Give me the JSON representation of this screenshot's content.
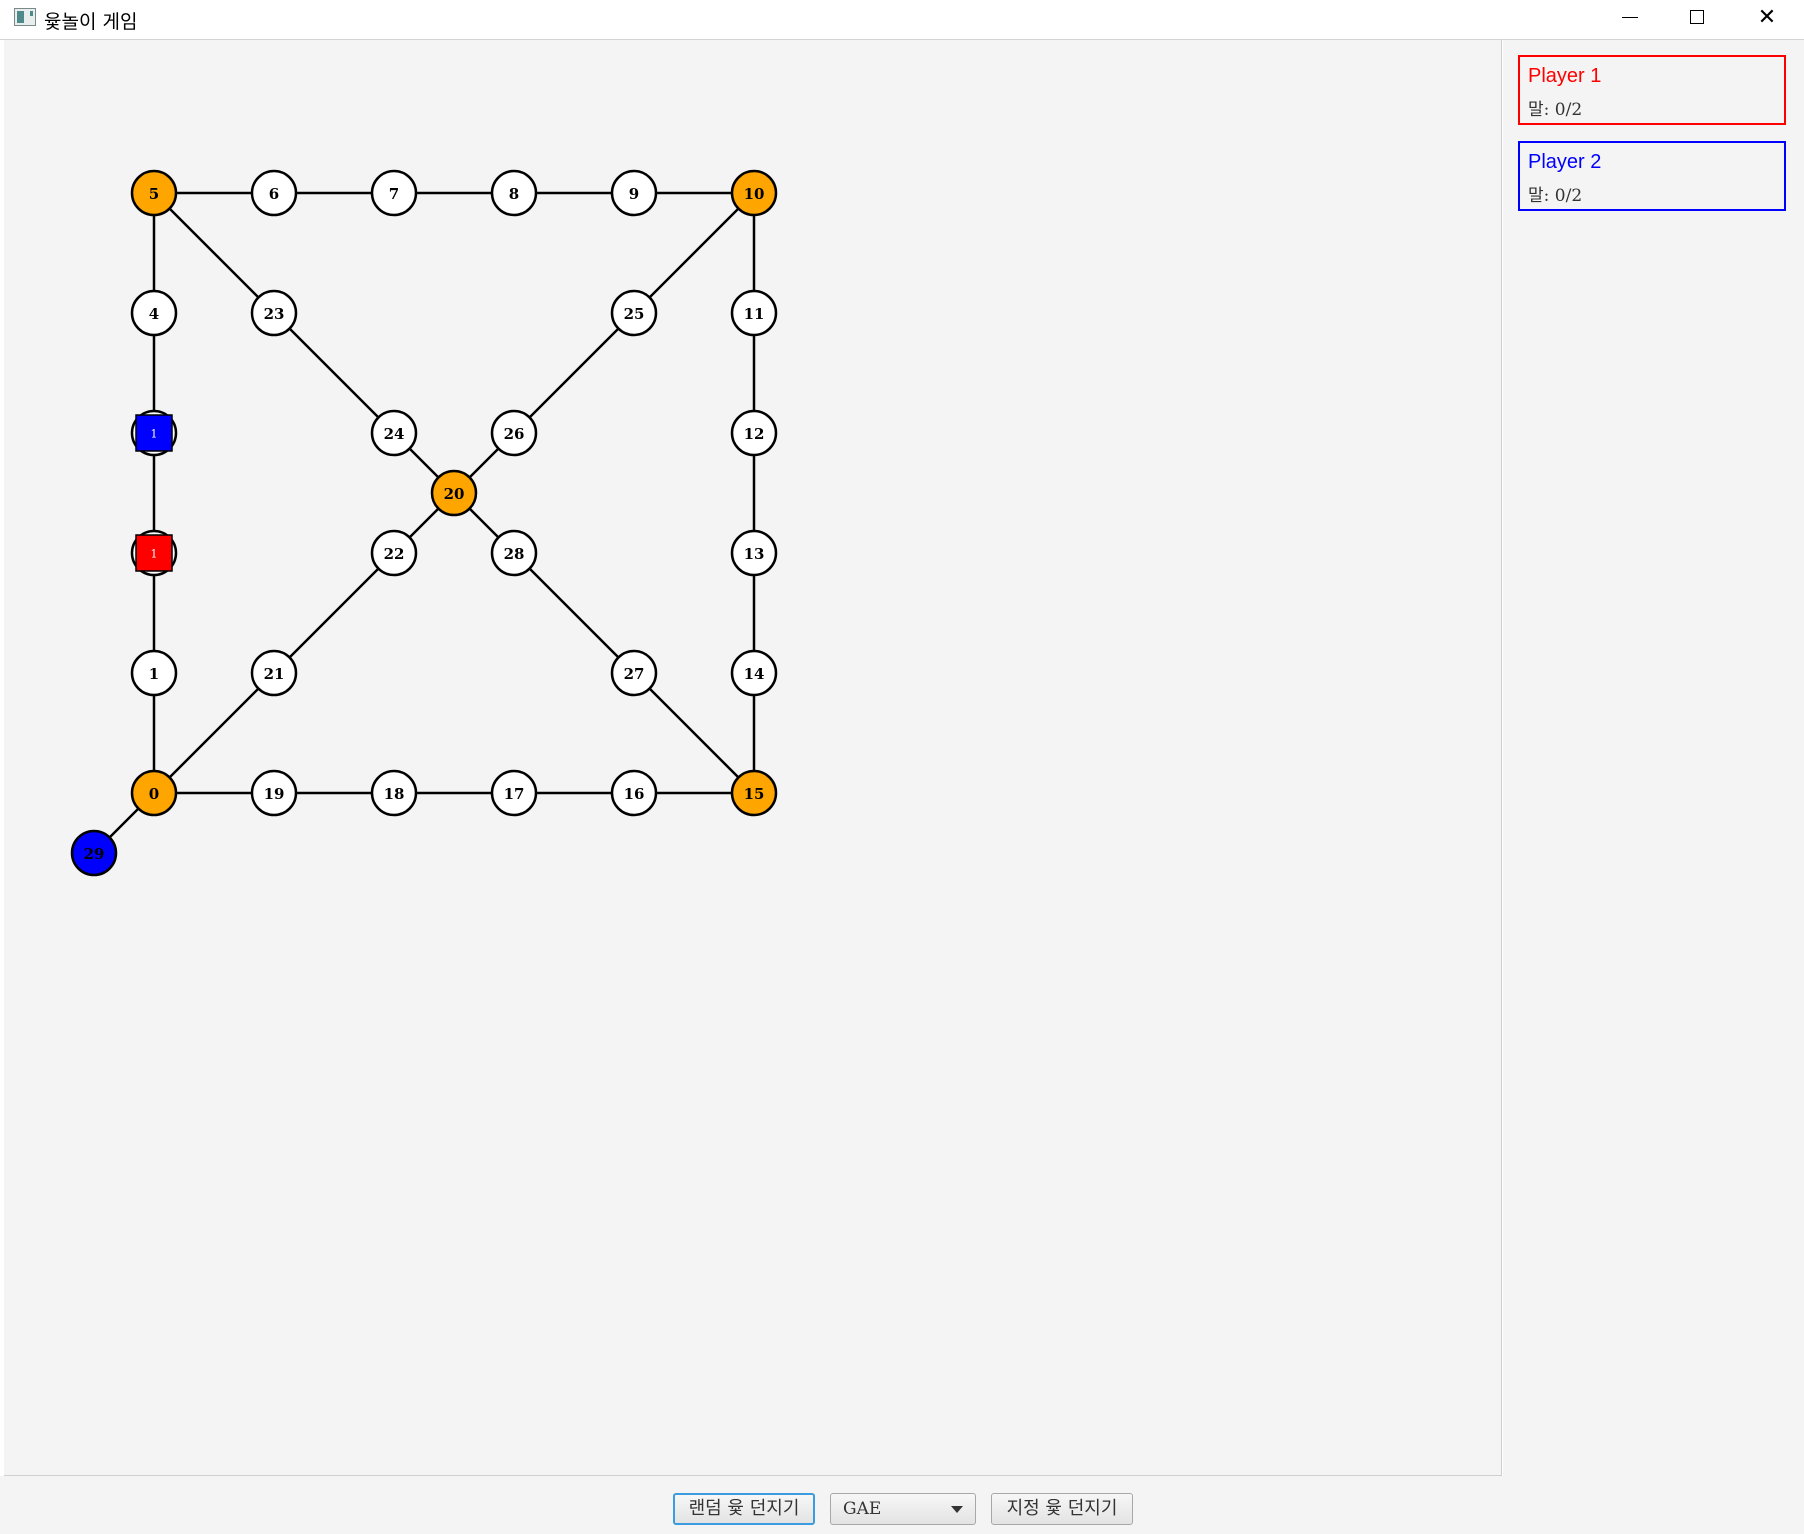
{
  "window": {
    "title": "윷놀이 게임"
  },
  "players": [
    {
      "name": "Player 1",
      "pieces_label": "말: 0/2",
      "color": "#ff0000"
    },
    {
      "name": "Player 2",
      "pieces_label": "말: 0/2",
      "color": "#0000ff"
    }
  ],
  "controls": {
    "random_throw_label": "랜덤 윷 던지기",
    "yut_selected": "GAE",
    "custom_throw_label": "지정 윷 던지기"
  },
  "board": {
    "corner_color": "#ffa500",
    "node_color": "#ffffff",
    "start_node_color": "#0000ff",
    "nodes": [
      {
        "id": "0",
        "corner": true
      },
      {
        "id": "1"
      },
      {
        "id": "2"
      },
      {
        "id": "3"
      },
      {
        "id": "4"
      },
      {
        "id": "5",
        "corner": true
      },
      {
        "id": "6"
      },
      {
        "id": "7"
      },
      {
        "id": "8"
      },
      {
        "id": "9"
      },
      {
        "id": "10",
        "corner": true
      },
      {
        "id": "11"
      },
      {
        "id": "12"
      },
      {
        "id": "13"
      },
      {
        "id": "14"
      },
      {
        "id": "15",
        "corner": true
      },
      {
        "id": "16"
      },
      {
        "id": "17"
      },
      {
        "id": "18"
      },
      {
        "id": "19"
      },
      {
        "id": "20",
        "corner": true
      },
      {
        "id": "21"
      },
      {
        "id": "22"
      },
      {
        "id": "23"
      },
      {
        "id": "24"
      },
      {
        "id": "25"
      },
      {
        "id": "26"
      },
      {
        "id": "27"
      },
      {
        "id": "28"
      },
      {
        "id": "29",
        "start": true
      }
    ],
    "pieces": [
      {
        "player": 1,
        "node": "2",
        "count": "1",
        "color": "#ff0000"
      },
      {
        "player": 2,
        "node": "3",
        "count": "1",
        "color": "#0000ff"
      }
    ]
  }
}
